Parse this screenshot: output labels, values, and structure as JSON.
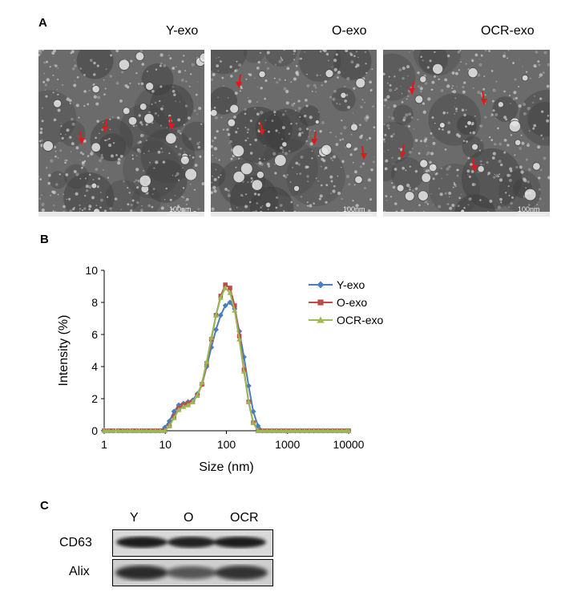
{
  "panel_a": {
    "letter": "A",
    "images": [
      {
        "label": "Y-exo",
        "scale": "100nm"
      },
      {
        "label": "O-exo",
        "scale": "100nm"
      },
      {
        "label": "OCR-exo",
        "scale": "100nm"
      }
    ],
    "arrow_color": "#e01a1a"
  },
  "panel_b": {
    "letter": "B"
  },
  "chart_data": {
    "type": "line",
    "xscale": "log",
    "xlabel": "Size (nm)",
    "ylabel": "Intensity (%)",
    "xlim": [
      1,
      10000
    ],
    "ylim": [
      0,
      10
    ],
    "xticks": [
      "1",
      "10",
      "100",
      "1000",
      "10000"
    ],
    "yticks": [
      "0",
      "2",
      "4",
      "6",
      "8",
      "10"
    ],
    "grid": false,
    "legend": "top-right",
    "x": [
      1,
      1.2,
      1.4,
      1.7,
      2.0,
      2.4,
      2.9,
      3.4,
      4.1,
      4.9,
      5.8,
      6.9,
      8.2,
      9.8,
      11.7,
      13.9,
      16.6,
      19.8,
      23.6,
      28.1,
      33.5,
      39.9,
      47.6,
      56.7,
      67.6,
      80.6,
      96.1,
      114.5,
      136.5,
      162.7,
      193.9,
      231.1,
      275.4,
      328.3,
      391.1,
      466.2,
      555.8,
      662.5,
      789.9,
      941.6,
      1122,
      1337,
      1594,
      1900,
      2264,
      2699,
      3216,
      3834,
      4569,
      5446,
      6491,
      7737,
      9222,
      10000
    ],
    "series": [
      {
        "name": "Y-exo",
        "color": "#4a7ebb",
        "marker": "diamond",
        "values": [
          0,
          0,
          0,
          0,
          0,
          0,
          0,
          0,
          0,
          0,
          0,
          0,
          0,
          0.2,
          0.6,
          1.2,
          1.6,
          1.7,
          1.8,
          1.9,
          2.3,
          2.9,
          4.0,
          5.2,
          6.3,
          7.2,
          7.8,
          8.0,
          7.6,
          6.2,
          4.6,
          2.8,
          1.2,
          0.3,
          0,
          0,
          0,
          0,
          0,
          0,
          0,
          0,
          0,
          0,
          0,
          0,
          0,
          0,
          0,
          0,
          0,
          0,
          0,
          0
        ]
      },
      {
        "name": "O-exo",
        "color": "#be4b48",
        "marker": "square",
        "values": [
          0,
          0,
          0,
          0,
          0,
          0,
          0,
          0,
          0,
          0,
          0,
          0,
          0,
          0,
          0.3,
          0.9,
          1.4,
          1.6,
          1.7,
          1.8,
          2.2,
          2.9,
          4.2,
          5.7,
          7.2,
          8.4,
          9.1,
          8.9,
          7.8,
          5.9,
          3.8,
          1.8,
          0.5,
          0,
          0,
          0,
          0,
          0,
          0,
          0,
          0,
          0,
          0,
          0,
          0,
          0,
          0,
          0,
          0,
          0,
          0,
          0,
          0,
          0
        ]
      },
      {
        "name": "OCR-exo",
        "color": "#98b954",
        "marker": "triangle",
        "values": [
          0,
          0,
          0,
          0,
          0,
          0,
          0,
          0,
          0,
          0,
          0,
          0,
          0,
          0,
          0.3,
          0.8,
          1.3,
          1.5,
          1.6,
          1.8,
          2.2,
          3.0,
          4.3,
          5.8,
          7.2,
          8.3,
          8.9,
          8.6,
          7.5,
          5.7,
          3.7,
          1.8,
          0.5,
          0,
          0,
          0,
          0,
          0,
          0,
          0,
          0,
          0,
          0,
          0,
          0,
          0,
          0,
          0,
          0,
          0,
          0,
          0,
          0,
          0
        ]
      }
    ]
  },
  "panel_c": {
    "letter": "C",
    "lanes": [
      "Y",
      "O",
      "OCR"
    ],
    "blots": [
      {
        "label": "CD63"
      },
      {
        "label": "Alix"
      }
    ]
  }
}
